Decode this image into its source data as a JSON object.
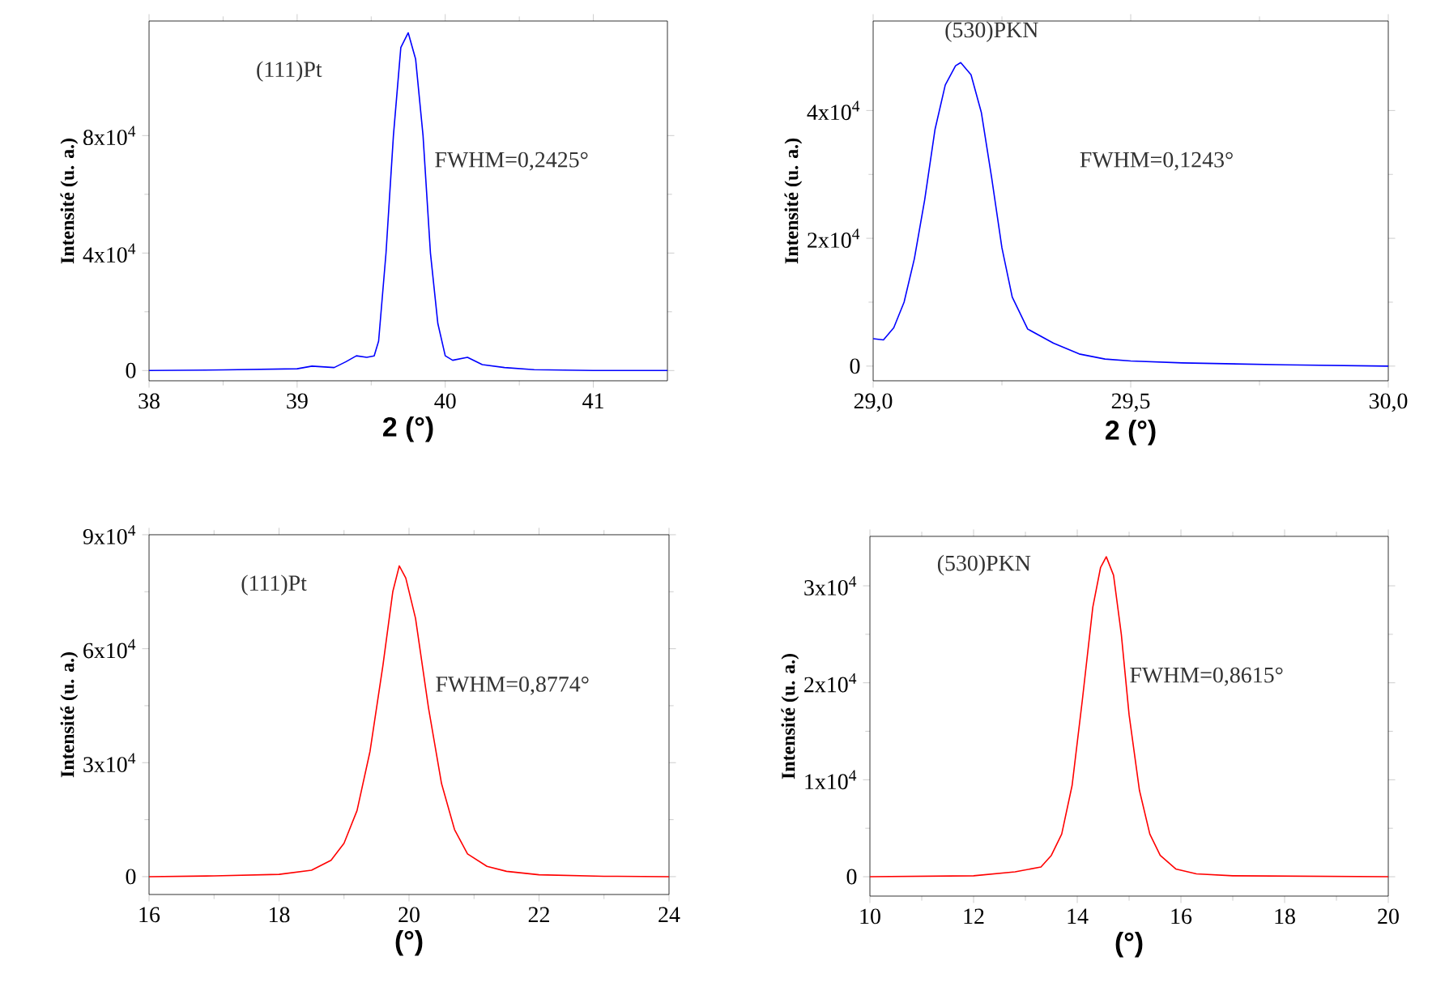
{
  "chart_data": [
    {
      "type": "line",
      "xlabel": "2  (°)",
      "ylabel": "Intensité (u. a.)",
      "xlim": [
        38,
        41.5
      ],
      "ylim": [
        -3500,
        119000
      ],
      "xticks": [
        38,
        39,
        40,
        41
      ],
      "yticks": [
        {
          "value": 0,
          "label": "0"
        },
        {
          "value": 40000,
          "label": "4x10$^{4}$"
        },
        {
          "value": 80000,
          "label": "8x10$^{4}$"
        }
      ],
      "grid": false,
      "marker": "none",
      "line_style": "solid",
      "annotations": [
        "(111)Pt",
        "FWHM=0,2425°"
      ],
      "series": [
        {
          "color": "#0000ff",
          "x": [
            38,
            38.5,
            39,
            39.1,
            39.25,
            39.33,
            39.4,
            39.47,
            39.52,
            39.55,
            39.6,
            39.65,
            39.7,
            39.75,
            39.8,
            39.85,
            39.9,
            39.95,
            40,
            40.05,
            40.15,
            40.25,
            40.4,
            40.6,
            41,
            41.5
          ],
          "values": [
            0,
            200,
            600,
            1500,
            1000,
            3000,
            5000,
            4500,
            5000,
            10000,
            40000,
            80000,
            110000,
            115000,
            106000,
            80000,
            40000,
            16000,
            5000,
            3500,
            4500,
            2000,
            1000,
            300,
            0,
            0
          ]
        }
      ]
    },
    {
      "type": "line",
      "xlabel": "2  (°)",
      "ylabel": "Intensité (u. a.)",
      "xlim": [
        29.0,
        30.0
      ],
      "ylim": [
        -2300,
        54000
      ],
      "xticks": [
        {
          "value": 29.0,
          "label": "29,0"
        },
        {
          "value": 29.5,
          "label": "29,5"
        },
        {
          "value": 30.0,
          "label": "30,0"
        }
      ],
      "yticks": [
        {
          "value": 0,
          "label": "0"
        },
        {
          "value": 20000,
          "label": "2x10$^{4}$"
        },
        {
          "value": 40000,
          "label": "4x10$^{4}$"
        }
      ],
      "grid": false,
      "marker": "none",
      "line_style": "solid",
      "annotations": [
        "(530)PKN",
        "FWHM=0,1243°"
      ],
      "series": [
        {
          "color": "#0000ff",
          "x": [
            29.0,
            29.02,
            29.04,
            29.06,
            29.08,
            29.1,
            29.12,
            29.14,
            29.16,
            29.17,
            29.19,
            29.21,
            29.23,
            29.25,
            29.27,
            29.3,
            29.35,
            29.4,
            29.45,
            29.5,
            29.6,
            29.8,
            30.0
          ],
          "values": [
            4300,
            4100,
            6000,
            10000,
            16800,
            26000,
            37000,
            44000,
            47000,
            47500,
            45600,
            39700,
            29500,
            18500,
            10800,
            5800,
            3600,
            1900,
            1100,
            800,
            500,
            200,
            0
          ]
        }
      ]
    },
    {
      "type": "line",
      "xlabel": "(°)",
      "ylabel": "Intensité (u. a.)",
      "xlim": [
        16,
        24
      ],
      "ylim": [
        -4700,
        90000
      ],
      "xticks": [
        16,
        18,
        20,
        22,
        24
      ],
      "yticks": [
        {
          "value": 0,
          "label": "0"
        },
        {
          "value": 30000,
          "label": "3x10$^{4}$"
        },
        {
          "value": 60000,
          "label": "6x10$^{4}$"
        },
        {
          "value": 90000,
          "label": "9x10$^{4}$"
        }
      ],
      "grid": false,
      "marker": "none",
      "line_style": "solid",
      "annotations": [
        "(111)Pt",
        "FWHM=0,8774°"
      ],
      "series": [
        {
          "color": "#ff0000",
          "x": [
            16,
            17,
            18,
            18.5,
            18.8,
            19.0,
            19.2,
            19.4,
            19.6,
            19.75,
            19.85,
            19.95,
            20.1,
            20.3,
            20.5,
            20.7,
            20.9,
            21.2,
            21.5,
            22,
            23,
            24
          ],
          "values": [
            0,
            200,
            600,
            1700,
            4300,
            8800,
            17400,
            33000,
            55800,
            75000,
            81800,
            78600,
            68000,
            44400,
            24500,
            12400,
            6000,
            2700,
            1400,
            500,
            100,
            0
          ]
        }
      ]
    },
    {
      "type": "line",
      "xlabel": "(°)",
      "ylabel": "Intensité (u. a.)",
      "xlim": [
        10,
        20
      ],
      "ylim": [
        -2000,
        35100
      ],
      "xticks": [
        10,
        12,
        14,
        16,
        18,
        20
      ],
      "yticks": [
        {
          "value": 0,
          "label": "0"
        },
        {
          "value": 10000,
          "label": "1x10$^{4}$"
        },
        {
          "value": 20000,
          "label": "2x10$^{4}$"
        },
        {
          "value": 30000,
          "label": "3x10$^{4}$"
        }
      ],
      "grid": false,
      "marker": "none",
      "line_style": "solid",
      "annotations": [
        "(530)PKN",
        "FWHM=0,8615°"
      ],
      "series": [
        {
          "color": "#ff0000",
          "x": [
            10,
            12,
            12.8,
            13.3,
            13.5,
            13.7,
            13.9,
            14.1,
            14.3,
            14.45,
            14.56,
            14.7,
            14.85,
            15.0,
            15.2,
            15.4,
            15.6,
            15.9,
            16.3,
            17,
            20
          ],
          "values": [
            0,
            100,
            500,
            1000,
            2200,
            4400,
            9400,
            18300,
            27800,
            31900,
            33000,
            31100,
            25000,
            16700,
            8900,
            4400,
            2200,
            800,
            300,
            100,
            0
          ]
        }
      ]
    }
  ]
}
